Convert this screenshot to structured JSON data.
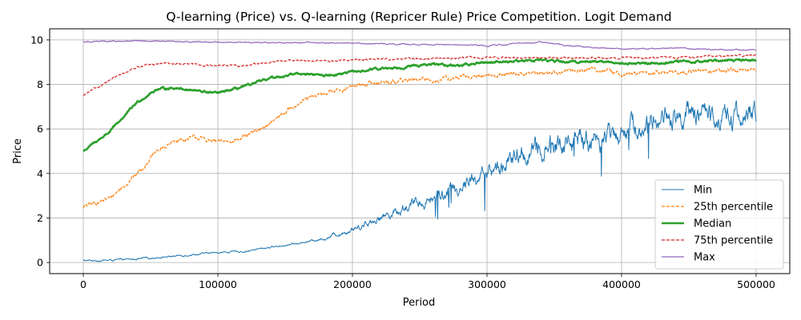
{
  "chart_data": {
    "type": "line",
    "title": "Q-learning (Price) vs. Q-learning (Repricer Rule) Price Competition. Logit Demand",
    "xlabel": "Period",
    "ylabel": "Price",
    "xlim": [
      -25000,
      525000
    ],
    "ylim": [
      -0.5,
      10.5
    ],
    "xticks": [
      0,
      100000,
      200000,
      300000,
      400000,
      500000
    ],
    "yticks": [
      0,
      2,
      4,
      6,
      8,
      10
    ],
    "grid": true,
    "legend_position": "lower-right",
    "series": [
      {
        "name": "Min",
        "color": "#1f77b4",
        "style": "solid",
        "width": 1,
        "noise": 0.6,
        "points": [
          [
            0,
            0.08
          ],
          [
            20000,
            0.1
          ],
          [
            40000,
            0.15
          ],
          [
            60000,
            0.25
          ],
          [
            80000,
            0.35
          ],
          [
            100000,
            0.45
          ],
          [
            120000,
            0.5
          ],
          [
            140000,
            0.7
          ],
          [
            160000,
            0.85
          ],
          [
            180000,
            1.1
          ],
          [
            200000,
            1.5
          ],
          [
            220000,
            2.0
          ],
          [
            240000,
            2.5
          ],
          [
            260000,
            2.9
          ],
          [
            280000,
            3.4
          ],
          [
            300000,
            4.0
          ],
          [
            320000,
            4.6
          ],
          [
            340000,
            5.1
          ],
          [
            360000,
            5.3
          ],
          [
            380000,
            5.5
          ],
          [
            400000,
            5.9
          ],
          [
            420000,
            6.3
          ],
          [
            440000,
            6.6
          ],
          [
            460000,
            6.7
          ],
          [
            480000,
            6.5
          ],
          [
            500000,
            6.6
          ]
        ]
      },
      {
        "name": "25th percentile",
        "color": "#ff7f0e",
        "style": "dashed",
        "width": 1.2,
        "noise": 0.12,
        "points": [
          [
            0,
            2.5
          ],
          [
            20000,
            2.9
          ],
          [
            40000,
            4.0
          ],
          [
            55000,
            5.0
          ],
          [
            70000,
            5.5
          ],
          [
            85000,
            5.6
          ],
          [
            100000,
            5.4
          ],
          [
            120000,
            5.6
          ],
          [
            140000,
            6.3
          ],
          [
            160000,
            7.2
          ],
          [
            180000,
            7.6
          ],
          [
            200000,
            7.9
          ],
          [
            220000,
            8.1
          ],
          [
            240000,
            8.2
          ],
          [
            260000,
            8.2
          ],
          [
            280000,
            8.3
          ],
          [
            300000,
            8.4
          ],
          [
            320000,
            8.5
          ],
          [
            340000,
            8.5
          ],
          [
            360000,
            8.6
          ],
          [
            380000,
            8.7
          ],
          [
            400000,
            8.45
          ],
          [
            420000,
            8.5
          ],
          [
            440000,
            8.55
          ],
          [
            460000,
            8.6
          ],
          [
            480000,
            8.6
          ],
          [
            500000,
            8.6
          ]
        ]
      },
      {
        "name": "Median",
        "color": "#2ca02c",
        "style": "solid",
        "width": 2.5,
        "noise": 0.06,
        "points": [
          [
            0,
            5.0
          ],
          [
            20000,
            5.9
          ],
          [
            40000,
            7.2
          ],
          [
            55000,
            7.8
          ],
          [
            70000,
            7.85
          ],
          [
            85000,
            7.7
          ],
          [
            100000,
            7.6
          ],
          [
            120000,
            7.9
          ],
          [
            140000,
            8.3
          ],
          [
            160000,
            8.5
          ],
          [
            180000,
            8.4
          ],
          [
            200000,
            8.55
          ],
          [
            220000,
            8.7
          ],
          [
            240000,
            8.8
          ],
          [
            260000,
            8.9
          ],
          [
            280000,
            8.85
          ],
          [
            300000,
            9.0
          ],
          [
            320000,
            9.05
          ],
          [
            340000,
            9.1
          ],
          [
            360000,
            9.0
          ],
          [
            380000,
            9.05
          ],
          [
            400000,
            8.95
          ],
          [
            420000,
            8.95
          ],
          [
            440000,
            9.0
          ],
          [
            460000,
            9.05
          ],
          [
            480000,
            9.1
          ],
          [
            500000,
            9.1
          ]
        ]
      },
      {
        "name": "75th percentile",
        "color": "#d62728",
        "style": "dashed",
        "width": 1.2,
        "noise": 0.05,
        "points": [
          [
            0,
            7.5
          ],
          [
            20000,
            8.2
          ],
          [
            40000,
            8.8
          ],
          [
            60000,
            8.95
          ],
          [
            80000,
            8.9
          ],
          [
            100000,
            8.85
          ],
          [
            120000,
            8.85
          ],
          [
            140000,
            9.0
          ],
          [
            160000,
            9.1
          ],
          [
            180000,
            9.05
          ],
          [
            200000,
            9.1
          ],
          [
            220000,
            9.15
          ],
          [
            240000,
            9.15
          ],
          [
            260000,
            9.15
          ],
          [
            280000,
            9.2
          ],
          [
            300000,
            9.2
          ],
          [
            320000,
            9.2
          ],
          [
            340000,
            9.2
          ],
          [
            360000,
            9.2
          ],
          [
            380000,
            9.2
          ],
          [
            400000,
            9.2
          ],
          [
            420000,
            9.2
          ],
          [
            440000,
            9.2
          ],
          [
            460000,
            9.25
          ],
          [
            480000,
            9.3
          ],
          [
            500000,
            9.3
          ]
        ]
      },
      {
        "name": "Max",
        "color": "#9467bd",
        "style": "solid",
        "width": 1.2,
        "noise": 0.03,
        "points": [
          [
            0,
            9.92
          ],
          [
            50000,
            9.95
          ],
          [
            100000,
            9.9
          ],
          [
            150000,
            9.88
          ],
          [
            200000,
            9.85
          ],
          [
            250000,
            9.8
          ],
          [
            300000,
            9.75
          ],
          [
            340000,
            9.9
          ],
          [
            360000,
            9.75
          ],
          [
            380000,
            9.65
          ],
          [
            400000,
            9.6
          ],
          [
            420000,
            9.6
          ],
          [
            440000,
            9.65
          ],
          [
            460000,
            9.58
          ],
          [
            480000,
            9.55
          ],
          [
            500000,
            9.55
          ]
        ]
      }
    ]
  }
}
